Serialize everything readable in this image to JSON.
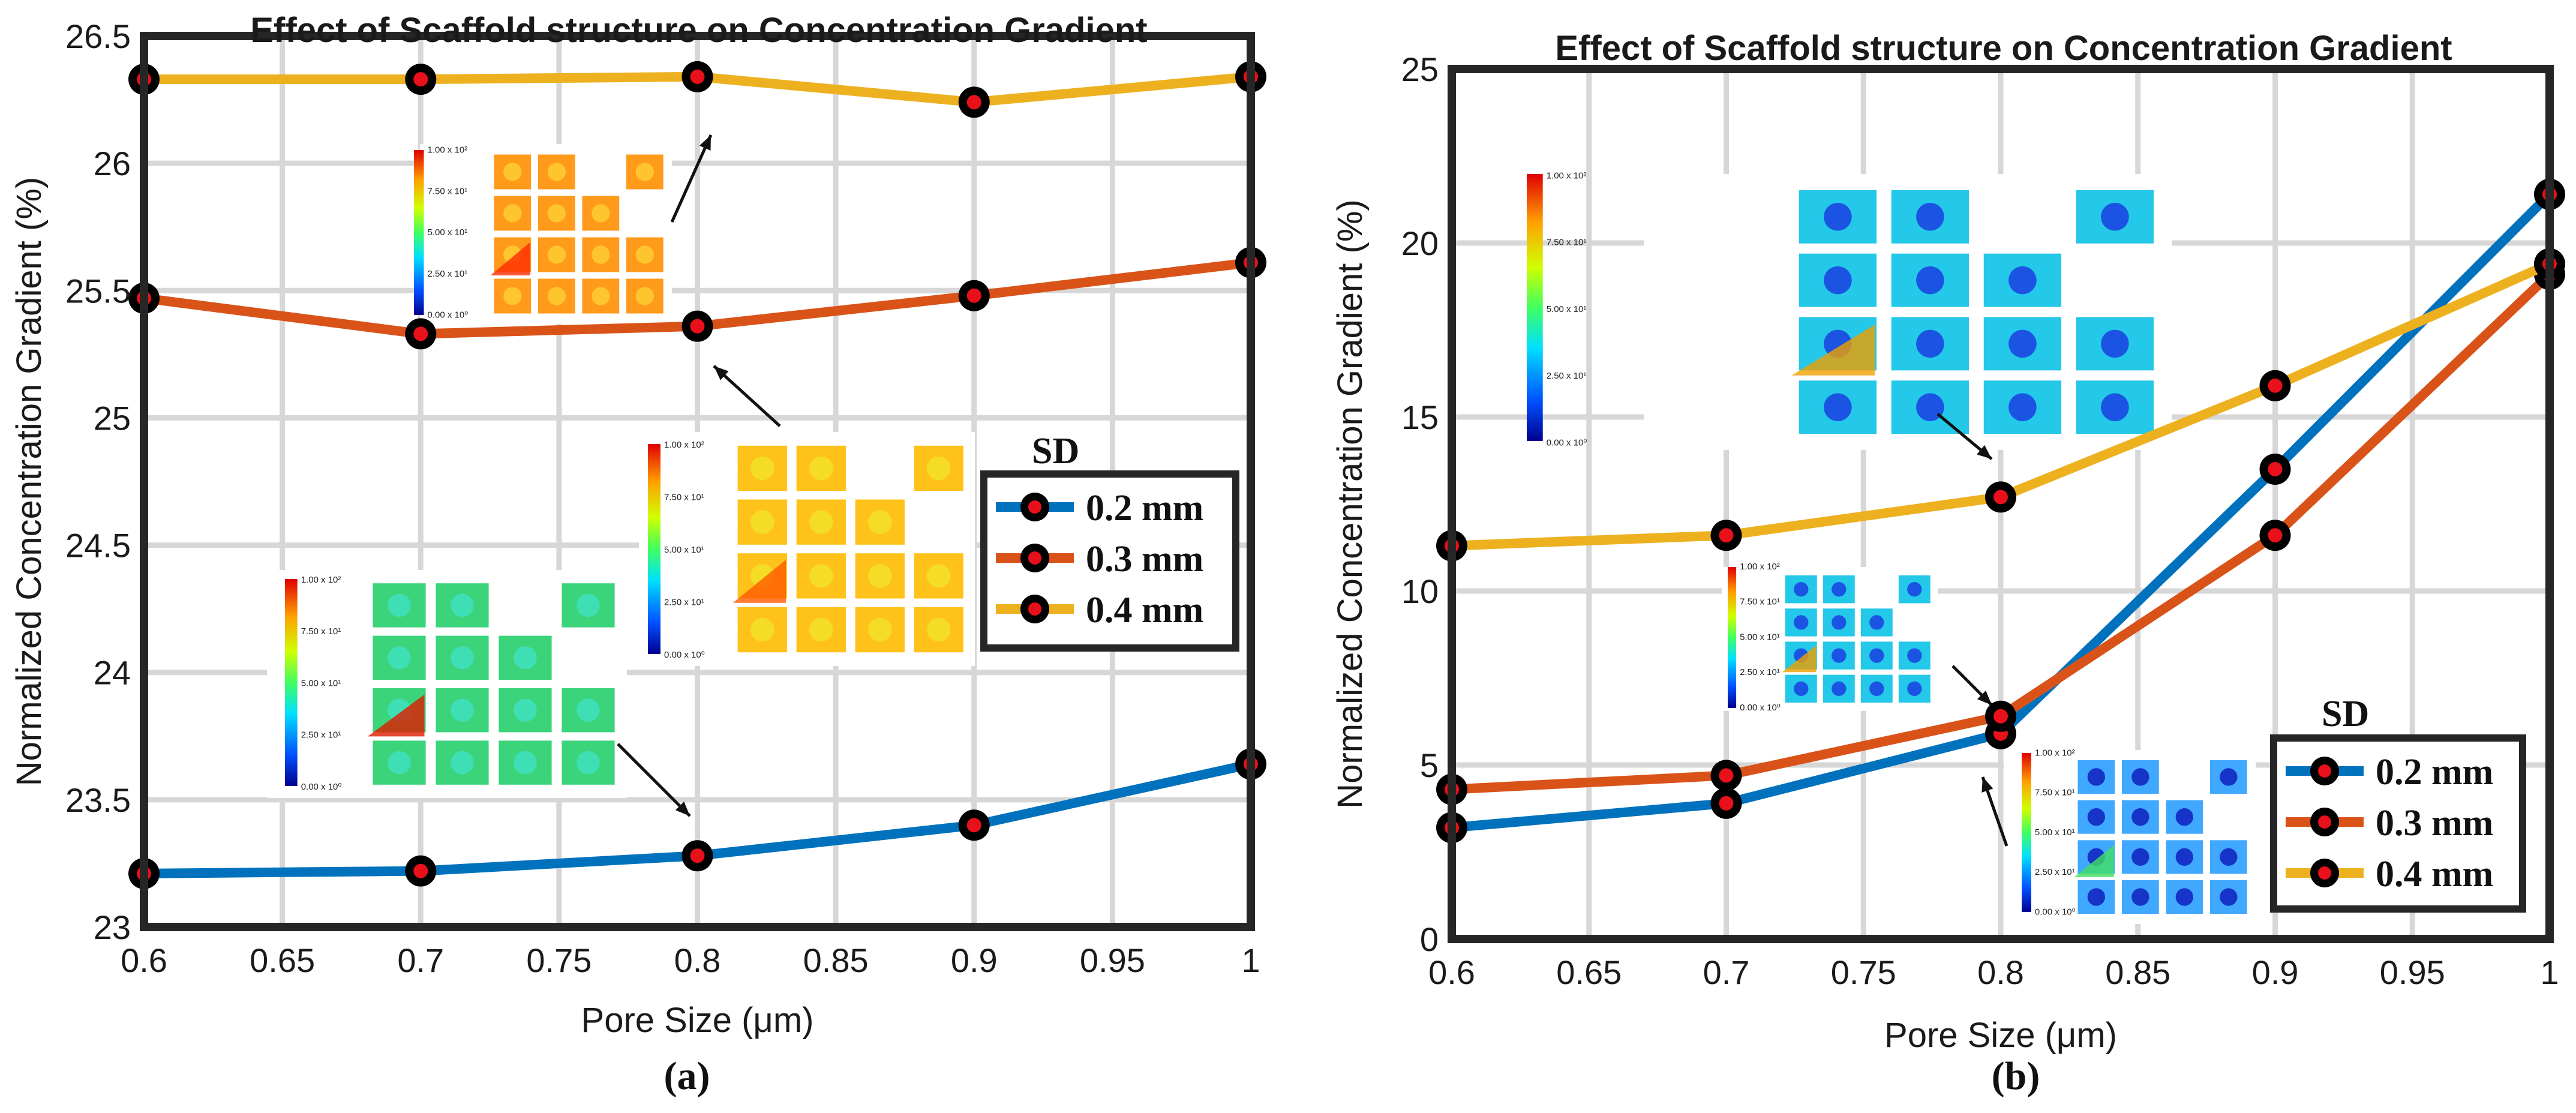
{
  "chart_data": [
    {
      "type": "line",
      "caption": "(a)",
      "title": "Effect of Scaffold structure on Concentration Gradient",
      "xlabel": "Pore Size (μm)",
      "ylabel": "Normalized Concentration Gradient (%)",
      "xlim": [
        0.6,
        1.0
      ],
      "ylim": [
        23,
        26.5
      ],
      "x_ticks": [
        "0.6",
        "0.65",
        "0.7",
        "0.75",
        "0.8",
        "0.85",
        "0.9",
        "0.95",
        "1"
      ],
      "y_ticks": [
        "23",
        "23.5",
        "24",
        "24.5",
        "25",
        "25.5",
        "26",
        "26.5"
      ],
      "grid": true,
      "legend_title": "SD",
      "legend_position": "center-right",
      "x": [
        0.6,
        0.7,
        0.8,
        0.9,
        1.0
      ],
      "series": [
        {
          "name": "0.2 mm",
          "color": "#0072bd",
          "values": [
            23.21,
            23.22,
            23.28,
            23.4,
            23.64
          ]
        },
        {
          "name": "0.3 mm",
          "color": "#d95319",
          "values": [
            25.47,
            25.33,
            25.36,
            25.48,
            25.61
          ]
        },
        {
          "name": "0.4 mm",
          "color": "#edb120",
          "values": [
            26.33,
            26.33,
            26.34,
            26.24,
            26.34
          ]
        }
      ],
      "colorbar_labels": [
        "1.00 x 10²",
        "7.50 x 10¹",
        "5.00 x 10¹",
        "2.50 x 10¹",
        "0.00 x 10⁰"
      ]
    },
    {
      "type": "line",
      "caption": "(b)",
      "title": "Effect of Scaffold structure on Concentration Gradient",
      "xlabel": "Pore Size (μm)",
      "ylabel": "Normalized Concentration Gradient (%)",
      "xlim": [
        0.6,
        1.0
      ],
      "ylim": [
        0,
        25
      ],
      "x_ticks": [
        "0.6",
        "0.65",
        "0.7",
        "0.75",
        "0.8",
        "0.85",
        "0.9",
        "0.95",
        "1"
      ],
      "y_ticks": [
        "0",
        "5",
        "10",
        "15",
        "20",
        "25"
      ],
      "grid": true,
      "legend_title": "SD",
      "legend_position": "bottom-right",
      "x": [
        0.6,
        0.7,
        0.8,
        0.9,
        1.0
      ],
      "series": [
        {
          "name": "0.2 mm",
          "color": "#0072bd",
          "values": [
            3.2,
            3.9,
            5.9,
            13.5,
            21.4
          ]
        },
        {
          "name": "0.3 mm",
          "color": "#d95319",
          "values": [
            4.3,
            4.7,
            6.4,
            11.6,
            19.1
          ]
        },
        {
          "name": "0.4 mm",
          "color": "#edb120",
          "values": [
            11.3,
            11.6,
            12.7,
            15.9,
            19.4
          ]
        }
      ],
      "colorbar_labels": [
        "1.00 x 10²",
        "7.50 x 10¹",
        "5.00 x 10¹",
        "2.50 x 10¹",
        "0.00 x 10⁰"
      ]
    }
  ]
}
